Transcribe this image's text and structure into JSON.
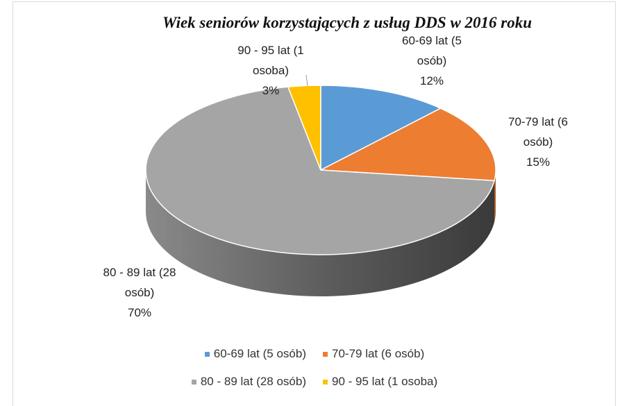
{
  "chart_data": {
    "type": "pie",
    "title": "Wiek seniorów korzystających z usług DDS w 2016 roku",
    "categories": [
      "60-69 lat (5 osób)",
      "70-79 lat (6 osób)",
      "80 - 89 lat (28 osób)",
      "90 - 95 lat (1 osoba)"
    ],
    "values": [
      12,
      15,
      70,
      3
    ],
    "value_labels": [
      "12%",
      "15%",
      "70%",
      "3%"
    ],
    "colors": [
      "#5b9bd5",
      "#ed7d31",
      "#a5a5a5",
      "#ffc000"
    ],
    "legend": "bottom"
  }
}
